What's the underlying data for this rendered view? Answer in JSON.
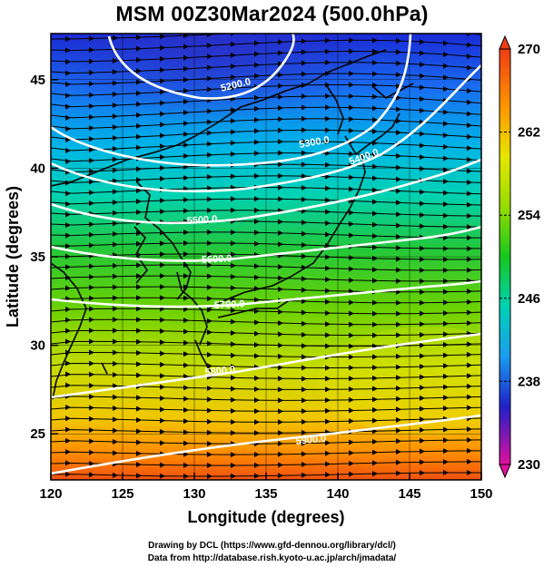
{
  "title": "MSM 00Z30Mar2024 (500.0hPa)",
  "axes": {
    "xlabel": "Longitude (degrees)",
    "ylabel": "Latitude  (degrees)",
    "xticks": [
      "120",
      "125",
      "130",
      "135",
      "140",
      "145",
      "150"
    ],
    "yticks": [
      "25",
      "30",
      "35",
      "40",
      "45"
    ],
    "xlim": [
      120,
      150
    ],
    "ylim": [
      22.4,
      47.6
    ]
  },
  "colorbar": {
    "ticks": [
      "270",
      "262",
      "254",
      "246",
      "238",
      "230"
    ],
    "range": [
      230,
      270
    ],
    "colors": [
      "#e0109e",
      "#2020c8",
      "#1a6cf0",
      "#00c8e6",
      "#16c81e",
      "#96dc00",
      "#e6e600",
      "#ff9600",
      "#f03c14"
    ]
  },
  "contours": {
    "field": "geopotential height (m)",
    "levels": [
      {
        "value": 5200,
        "label": "5200.0"
      },
      {
        "value": 5300,
        "label": "5300.0"
      },
      {
        "value": 5400,
        "label": "5400.0"
      },
      {
        "value": 5500,
        "label": "5500.0"
      },
      {
        "value": 5600,
        "label": "5600.0"
      },
      {
        "value": 5700,
        "label": "5700.0"
      },
      {
        "value": 5800,
        "label": "5800.0"
      },
      {
        "value": 5900,
        "label": "5900.0"
      }
    ]
  },
  "streamlines": {
    "direction": "west-to-east"
  },
  "credits": {
    "line1": "Drawing by DCL (https://www.gfd-dennou.org/library/dcl/)",
    "line2": "Data from http://database.rish.kyoto-u.ac.jp/arch/jmadata/"
  }
}
